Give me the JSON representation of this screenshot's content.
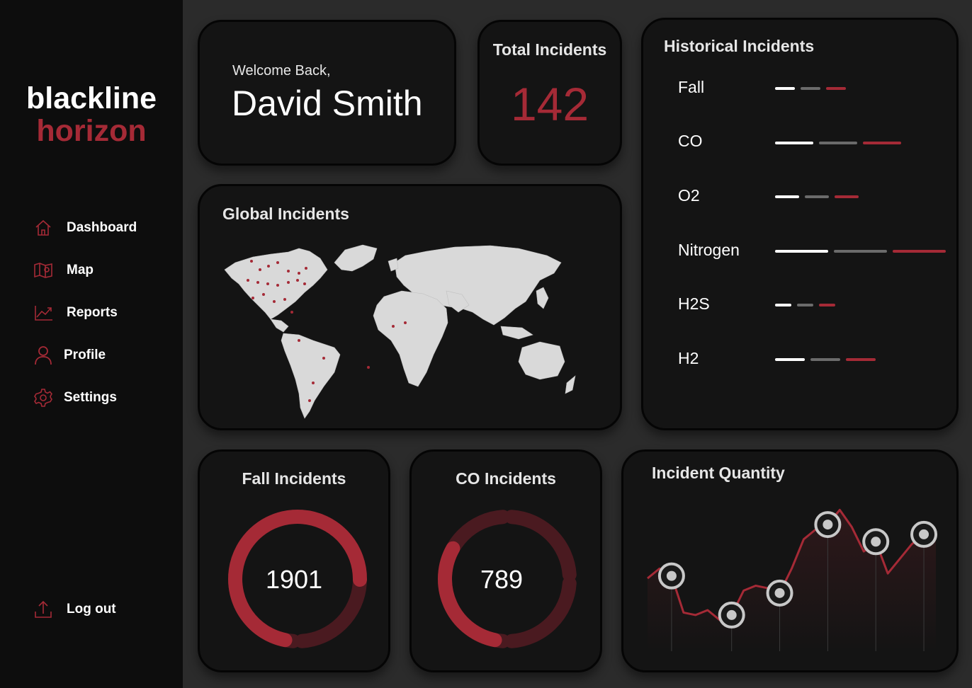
{
  "brand": {
    "line1": "blackline",
    "line2": "horizon"
  },
  "nav": {
    "items": [
      {
        "label": "Dashboard",
        "icon": "home-icon"
      },
      {
        "label": "Map",
        "icon": "map-icon"
      },
      {
        "label": "Reports",
        "icon": "chart-line-icon"
      },
      {
        "label": "Profile",
        "icon": "user-icon"
      },
      {
        "label": "Settings",
        "icon": "gear-icon"
      }
    ],
    "logout": {
      "label": "Log out",
      "icon": "upload-icon"
    }
  },
  "welcome": {
    "label": "Welcome Back,",
    "name": "David Smith"
  },
  "total": {
    "title": "Total Incidents",
    "value": "142"
  },
  "global": {
    "title": "Global Incidents"
  },
  "historical": {
    "title": "Historical Incidents",
    "legend_colors": [
      "#ffffff",
      "#6b6b6b",
      "#a52a36"
    ],
    "rows": [
      {
        "label": "Fall",
        "values": [
          28,
          28,
          28
        ]
      },
      {
        "label": "CO",
        "values": [
          54,
          54,
          54
        ]
      },
      {
        "label": "O2",
        "values": [
          34,
          34,
          34
        ]
      },
      {
        "label": "Nitrogen",
        "values": [
          75,
          75,
          75
        ]
      },
      {
        "label": "H2S",
        "values": [
          23,
          23,
          23
        ]
      },
      {
        "label": "H2",
        "values": [
          42,
          42,
          42
        ]
      }
    ]
  },
  "fall_incidents": {
    "title": "Fall Incidents",
    "value": "1901",
    "fraction": 0.72
  },
  "co_incidents": {
    "title": "CO Incidents",
    "value": "789",
    "fraction": 0.3
  },
  "quantity": {
    "title": "Incident Quantity",
    "chart_data": {
      "type": "line",
      "x": [
        1,
        2,
        3,
        4,
        5,
        6,
        7,
        8,
        9,
        10,
        11,
        12,
        13,
        14,
        15,
        16,
        17,
        18,
        19,
        20,
        21,
        22,
        23,
        24,
        25
      ],
      "values": [
        24,
        28,
        25,
        10,
        9,
        11,
        7,
        9,
        19,
        21,
        20,
        18,
        28,
        40,
        44,
        46,
        52,
        45,
        35,
        39,
        26,
        32,
        38,
        42,
        44
      ],
      "marked": [
        2,
        7,
        11,
        15,
        19,
        23
      ],
      "colors": {
        "line": "#a52a36",
        "marker_ring": "#c8c8c8",
        "marker_fill": "#1a1a1a"
      }
    }
  },
  "map": {
    "land_color": "#d9d9d9",
    "marker_color": "#a52a36"
  }
}
